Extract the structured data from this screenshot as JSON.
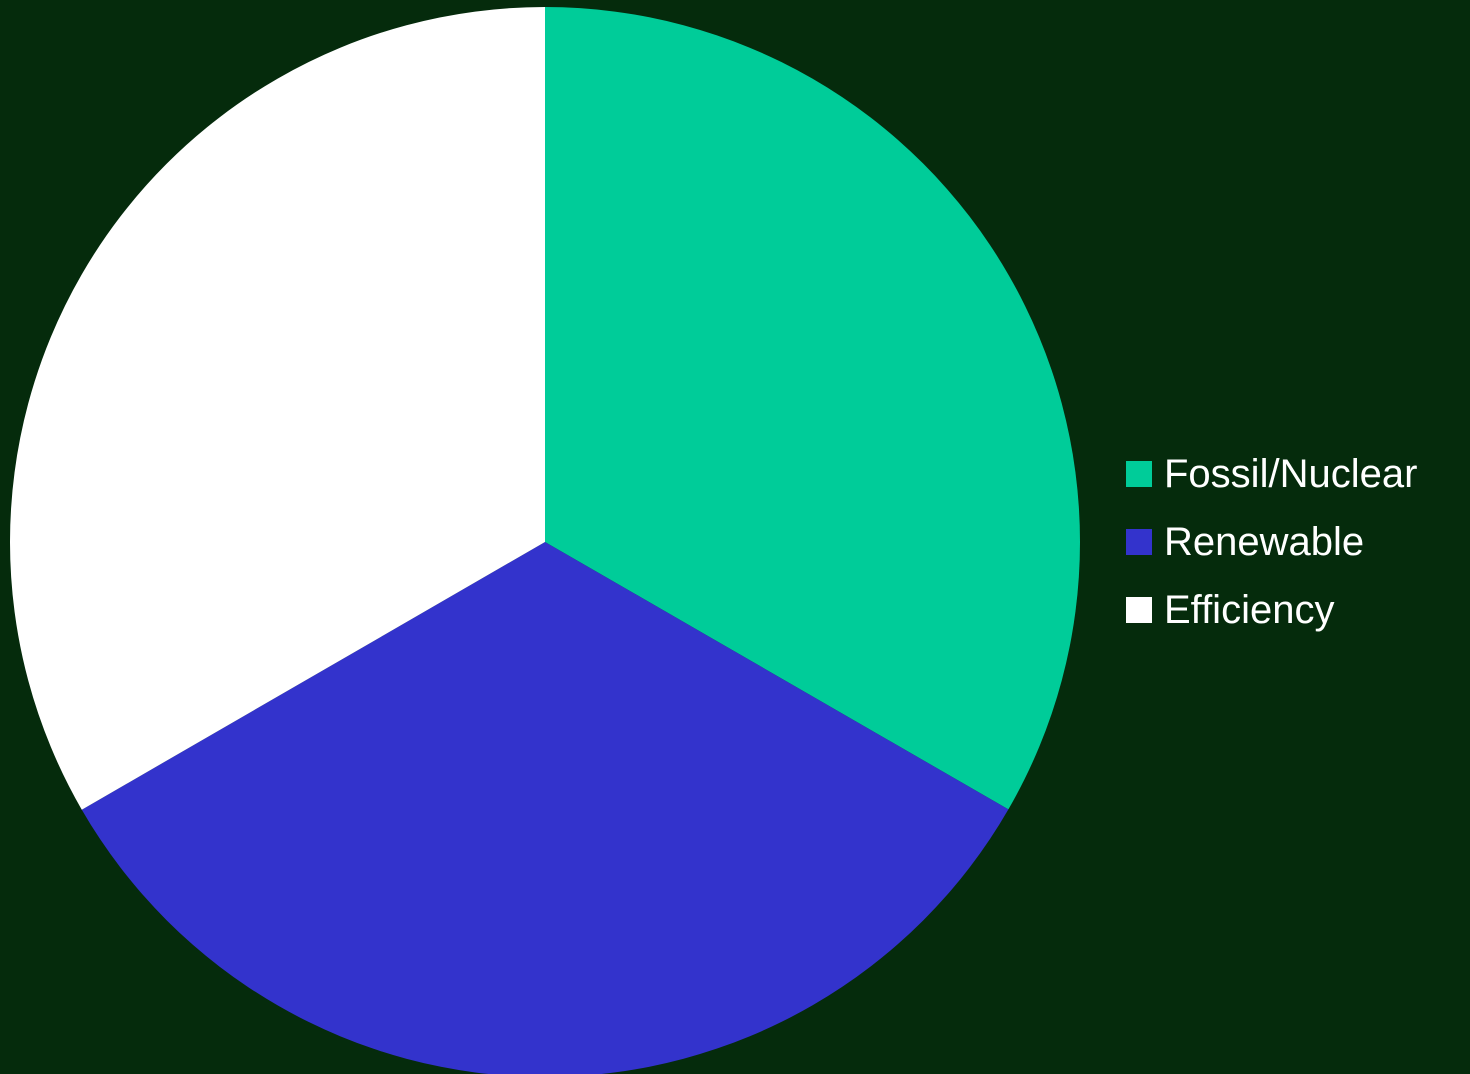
{
  "background_color": "#052b0c",
  "chart_data": {
    "type": "pie",
    "title": "",
    "legend_position": "right",
    "start_angle": "12 o'clock",
    "direction": "clockwise",
    "slices": [
      {
        "label": "Fossil/Nuclear",
        "value": 33.33,
        "color": "#00cc99"
      },
      {
        "label": "Renewable",
        "value": 33.33,
        "color": "#3333cc"
      },
      {
        "label": "Efficiency",
        "value": 33.34,
        "color": "#ffffff"
      }
    ]
  }
}
